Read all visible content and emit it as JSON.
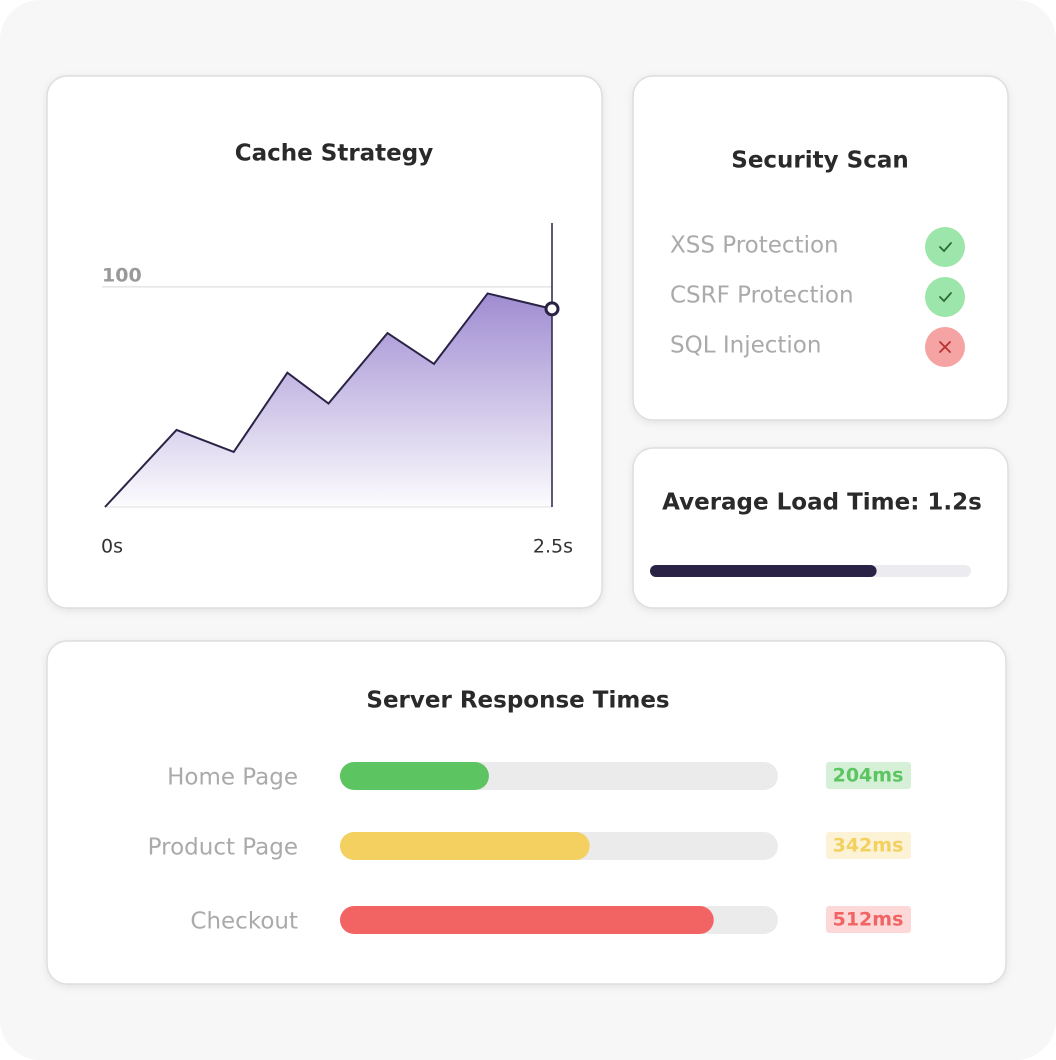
{
  "chart_data": [
    {
      "type": "area",
      "title": "Cache Strategy",
      "x": [
        0,
        0.4,
        0.72,
        1.02,
        1.25,
        1.58,
        1.84,
        2.14,
        2.5
      ],
      "values": [
        0,
        35,
        25,
        61,
        47,
        79,
        65,
        97,
        90
      ],
      "xlim": [
        0,
        2.5
      ],
      "xticks": [
        {
          "value": 0,
          "label": "0s"
        },
        {
          "value": 2.5,
          "label": "2.5s"
        }
      ],
      "ylim": [
        0,
        129
      ],
      "yticks": [
        100
      ],
      "grid": true,
      "color": "#2a2345",
      "fill_color": "#9a86cf"
    },
    {
      "type": "progress",
      "title": "Average Load Time: 1.2s",
      "value": 1.2,
      "xlim": [
        0,
        1.7
      ],
      "color": "#2a2345",
      "track_color": "#ebebf0"
    },
    {
      "type": "hbar",
      "title": "Server Response Times",
      "categories": [
        "Home Page",
        "Product Page",
        "Checkout"
      ],
      "values": [
        204,
        342,
        512
      ],
      "value_labels": [
        "204ms",
        "342ms",
        "512ms"
      ],
      "colors": [
        "#5dc462",
        "#f3d060",
        "#f26464"
      ],
      "xlim": [
        0,
        600
      ],
      "track_color": "#ebebeb"
    }
  ],
  "security_scan": {
    "title": "Security Scan",
    "items": [
      {
        "label": "XSS Protection",
        "passed": true
      },
      {
        "label": "CSRF Protection",
        "passed": true
      },
      {
        "label": "SQL Injection",
        "passed": false
      }
    ]
  }
}
